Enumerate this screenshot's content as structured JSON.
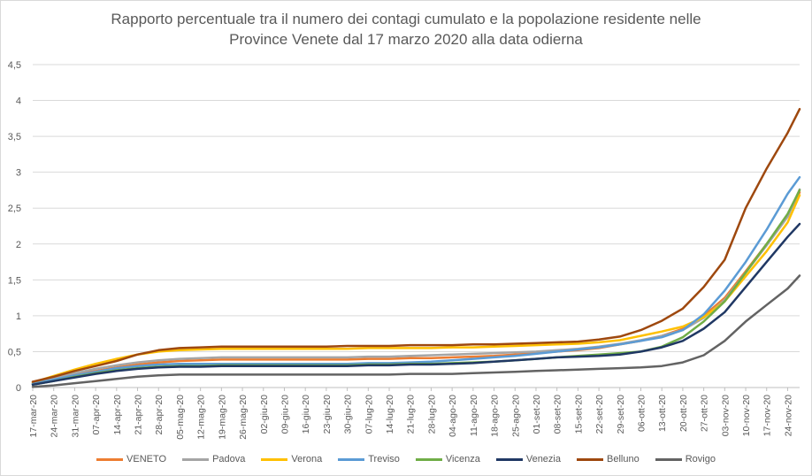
{
  "chart_data": {
    "type": "line",
    "title_line1": "Rapporto percentuale tra il numero dei contagi cumulato e la popolazione residente nelle",
    "title_line2": "Province Venete dal 17 marzo 2020 alla data odierna",
    "xlabel": "",
    "ylabel": "",
    "ylim": [
      0,
      4.5
    ],
    "y_ticks": [
      "0",
      "0,5",
      "1",
      "1,5",
      "2",
      "2,5",
      "3",
      "3,5",
      "4",
      "4,5"
    ],
    "grid": "horizontal",
    "legend_position": "bottom",
    "x_tick_labels": [
      "17-mar-20",
      "24-mar-20",
      "31-mar-20",
      "07-apr-20",
      "14-apr-20",
      "21-apr-20",
      "28-apr-20",
      "05-mag-20",
      "12-mag-20",
      "19-mag-20",
      "26-mag-20",
      "02-giu-20",
      "09-giu-20",
      "16-giu-20",
      "23-giu-20",
      "30-giu-20",
      "07-lug-20",
      "14-lug-20",
      "21-lug-20",
      "28-lug-20",
      "04-ago-20",
      "11-ago-20",
      "18-ago-20",
      "25-ago-20",
      "01-set-20",
      "08-set-20",
      "15-set-20",
      "22-set-20",
      "29-set-20",
      "06-ott-20",
      "13-ott-20",
      "20-ott-20",
      "27-ott-20",
      "03-nov-20",
      "10-nov-20",
      "17-nov-20",
      "24-nov-20"
    ],
    "x_dates": [
      "2020-03-17",
      "2020-03-24",
      "2020-03-31",
      "2020-04-07",
      "2020-04-14",
      "2020-04-21",
      "2020-04-28",
      "2020-05-05",
      "2020-05-12",
      "2020-05-19",
      "2020-05-26",
      "2020-06-02",
      "2020-06-09",
      "2020-06-16",
      "2020-06-23",
      "2020-06-30",
      "2020-07-07",
      "2020-07-14",
      "2020-07-21",
      "2020-07-28",
      "2020-08-04",
      "2020-08-11",
      "2020-08-18",
      "2020-08-25",
      "2020-09-01",
      "2020-09-08",
      "2020-09-15",
      "2020-09-22",
      "2020-09-29",
      "2020-10-06",
      "2020-10-13",
      "2020-10-20",
      "2020-10-27",
      "2020-11-03",
      "2020-11-10",
      "2020-11-17",
      "2020-11-24",
      "2020-11-28"
    ],
    "series": [
      {
        "name": "VENETO",
        "color": "#ED7D31",
        "values": [
          0.05,
          0.11,
          0.18,
          0.23,
          0.28,
          0.32,
          0.35,
          0.37,
          0.38,
          0.39,
          0.39,
          0.39,
          0.39,
          0.39,
          0.39,
          0.39,
          0.4,
          0.4,
          0.41,
          0.41,
          0.42,
          0.43,
          0.44,
          0.46,
          0.48,
          0.5,
          0.52,
          0.55,
          0.6,
          0.65,
          0.72,
          0.82,
          1.0,
          1.25,
          1.62,
          2.0,
          2.4,
          2.72
        ]
      },
      {
        "name": "Padova",
        "color": "#A5A5A5",
        "values": [
          0.06,
          0.13,
          0.2,
          0.26,
          0.31,
          0.35,
          0.38,
          0.4,
          0.41,
          0.42,
          0.42,
          0.42,
          0.42,
          0.42,
          0.42,
          0.42,
          0.43,
          0.43,
          0.44,
          0.45,
          0.46,
          0.47,
          0.48,
          0.49,
          0.5,
          0.52,
          0.54,
          0.57,
          0.61,
          0.66,
          0.72,
          0.8,
          0.97,
          1.22,
          1.6,
          1.98,
          2.38,
          2.76
        ]
      },
      {
        "name": "Verona",
        "color": "#FFC000",
        "values": [
          0.07,
          0.16,
          0.25,
          0.33,
          0.4,
          0.46,
          0.5,
          0.52,
          0.53,
          0.54,
          0.54,
          0.54,
          0.54,
          0.54,
          0.54,
          0.54,
          0.55,
          0.55,
          0.55,
          0.55,
          0.56,
          0.56,
          0.57,
          0.58,
          0.59,
          0.6,
          0.61,
          0.63,
          0.66,
          0.72,
          0.78,
          0.85,
          0.98,
          1.2,
          1.55,
          1.9,
          2.3,
          2.68
        ]
      },
      {
        "name": "Treviso",
        "color": "#5B9BD5",
        "values": [
          0.05,
          0.11,
          0.17,
          0.22,
          0.27,
          0.3,
          0.32,
          0.33,
          0.33,
          0.33,
          0.33,
          0.33,
          0.33,
          0.33,
          0.33,
          0.33,
          0.34,
          0.34,
          0.35,
          0.36,
          0.38,
          0.4,
          0.42,
          0.44,
          0.47,
          0.5,
          0.53,
          0.56,
          0.6,
          0.65,
          0.7,
          0.8,
          1.02,
          1.35,
          1.75,
          2.2,
          2.7,
          2.93
        ]
      },
      {
        "name": "Vicenza",
        "color": "#70AD47",
        "values": [
          0.04,
          0.09,
          0.15,
          0.2,
          0.24,
          0.27,
          0.29,
          0.3,
          0.3,
          0.31,
          0.31,
          0.31,
          0.31,
          0.31,
          0.31,
          0.31,
          0.32,
          0.32,
          0.33,
          0.33,
          0.34,
          0.35,
          0.36,
          0.38,
          0.4,
          0.42,
          0.44,
          0.46,
          0.48,
          0.5,
          0.57,
          0.7,
          0.92,
          1.2,
          1.6,
          2.0,
          2.42,
          2.75
        ]
      },
      {
        "name": "Venezia",
        "color": "#203864",
        "values": [
          0.04,
          0.09,
          0.14,
          0.19,
          0.23,
          0.26,
          0.28,
          0.29,
          0.29,
          0.3,
          0.3,
          0.3,
          0.3,
          0.3,
          0.3,
          0.3,
          0.31,
          0.31,
          0.32,
          0.32,
          0.33,
          0.34,
          0.36,
          0.38,
          0.4,
          0.42,
          0.43,
          0.44,
          0.46,
          0.5,
          0.56,
          0.65,
          0.82,
          1.05,
          1.4,
          1.75,
          2.1,
          2.28
        ]
      },
      {
        "name": "Belluno",
        "color": "#9E480E",
        "values": [
          0.08,
          0.15,
          0.23,
          0.3,
          0.37,
          0.46,
          0.52,
          0.55,
          0.56,
          0.57,
          0.57,
          0.57,
          0.57,
          0.57,
          0.57,
          0.58,
          0.58,
          0.58,
          0.59,
          0.59,
          0.59,
          0.6,
          0.6,
          0.61,
          0.62,
          0.63,
          0.64,
          0.67,
          0.71,
          0.8,
          0.93,
          1.1,
          1.4,
          1.78,
          2.5,
          3.05,
          3.55,
          3.88
        ]
      },
      {
        "name": "Rovigo",
        "color": "#636363",
        "values": [
          0.01,
          0.03,
          0.06,
          0.09,
          0.12,
          0.15,
          0.17,
          0.18,
          0.18,
          0.18,
          0.18,
          0.18,
          0.18,
          0.18,
          0.18,
          0.18,
          0.18,
          0.18,
          0.19,
          0.19,
          0.19,
          0.2,
          0.21,
          0.22,
          0.23,
          0.24,
          0.25,
          0.26,
          0.27,
          0.28,
          0.3,
          0.35,
          0.45,
          0.65,
          0.92,
          1.15,
          1.38,
          1.56
        ]
      }
    ]
  }
}
